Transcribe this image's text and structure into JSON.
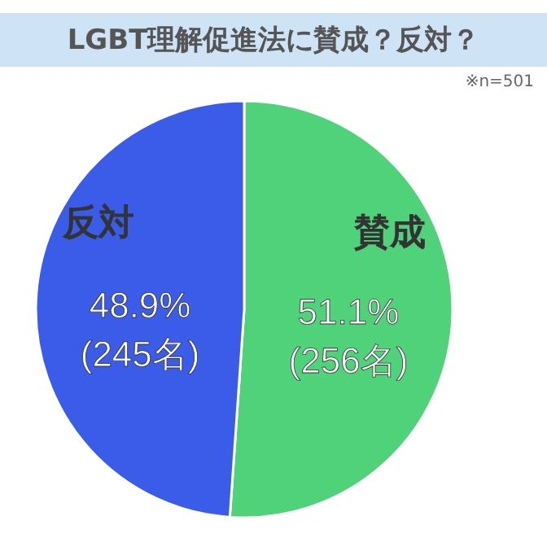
{
  "chart_data": {
    "type": "pie",
    "title": "LGBT理解促進法に賛成？反対？",
    "categories": [
      "賛成",
      "反対"
    ],
    "values": [
      51.1,
      48.9
    ],
    "colors": [
      "#4fd27a",
      "#3a5ce8"
    ],
    "value_labels": [
      "51.1%\n(256名)",
      "48.9%\n(245名)"
    ],
    "annotations": [
      "※n=501"
    ],
    "legend": false
  }
}
